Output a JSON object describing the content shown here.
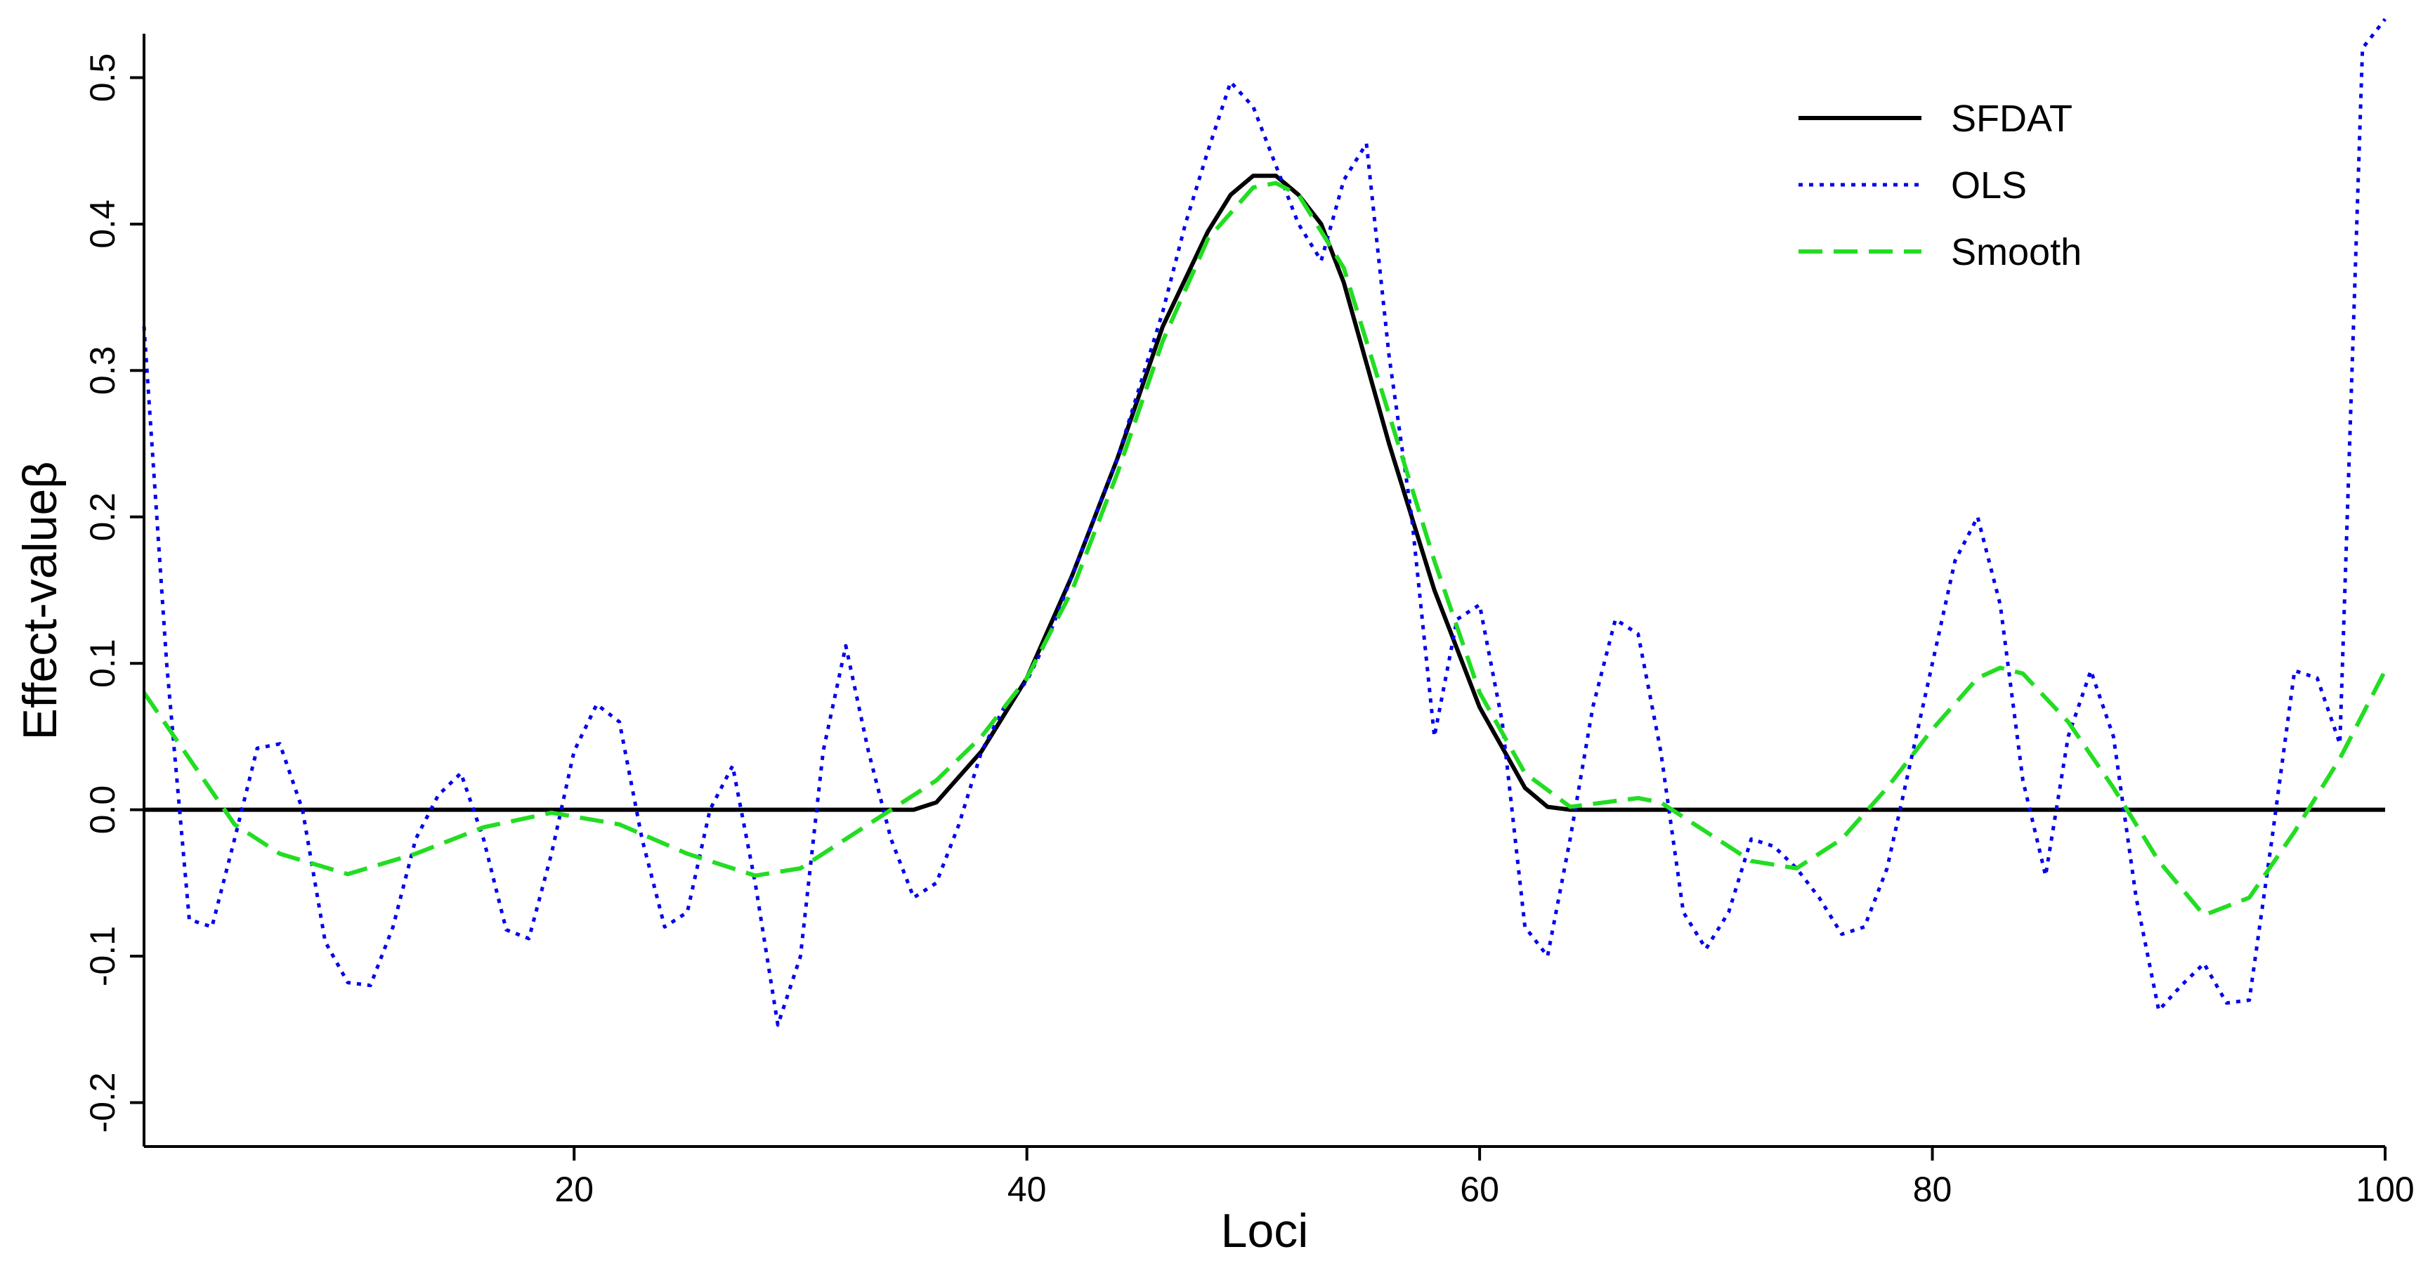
{
  "chart_data": {
    "type": "line",
    "title": "",
    "xlabel": "Loci",
    "ylabel": "Effect-valueβ",
    "xlim": [
      1,
      100
    ],
    "ylim": [
      -0.23,
      0.53
    ],
    "xticks": [
      20,
      40,
      60,
      80,
      100
    ],
    "yticks": [
      -0.2,
      -0.1,
      0.0,
      0.1,
      0.2,
      0.3,
      0.4,
      0.5
    ],
    "ytick_labels": [
      "-0.2",
      "-0.1",
      "0.0",
      "0.1",
      "0.2",
      "0.3",
      "0.4",
      "0.5"
    ],
    "grid": false,
    "legend_position": "top-right",
    "series": [
      {
        "name": "SFDAT",
        "color": "#000000",
        "style": "solid",
        "x": [
          1,
          35,
          36,
          38,
          40,
          42,
          44,
          46,
          48,
          49,
          50,
          51,
          52,
          53,
          54,
          56,
          58,
          60,
          62,
          63,
          64,
          100
        ],
        "y": [
          0,
          0,
          0.005,
          0.04,
          0.09,
          0.16,
          0.24,
          0.33,
          0.395,
          0.42,
          0.433,
          0.433,
          0.42,
          0.4,
          0.36,
          0.25,
          0.15,
          0.07,
          0.015,
          0.002,
          0,
          0
        ]
      },
      {
        "name": "OLS",
        "color": "#0000ee",
        "style": "dotted",
        "x": [
          1,
          2,
          3,
          4,
          5,
          6,
          7,
          8,
          9,
          10,
          11,
          12,
          13,
          14,
          15,
          16,
          17,
          18,
          19,
          20,
          21,
          22,
          23,
          24,
          25,
          26,
          27,
          28,
          29,
          30,
          31,
          32,
          33,
          34,
          35,
          36,
          37,
          38,
          39,
          40,
          41,
          42,
          43,
          44,
          45,
          46,
          47,
          48,
          49,
          50,
          51,
          52,
          53,
          54,
          55,
          56,
          57,
          58,
          59,
          60,
          61,
          62,
          63,
          64,
          65,
          66,
          67,
          68,
          69,
          70,
          71,
          72,
          73,
          74,
          75,
          76,
          77,
          78,
          79,
          80,
          81,
          82,
          83,
          84,
          85,
          86,
          87,
          88,
          89,
          90,
          91,
          92,
          93,
          94,
          95,
          96,
          97,
          98,
          99,
          100
        ],
        "y": [
          0.33,
          0.1,
          -0.075,
          -0.08,
          -0.02,
          0.042,
          0.045,
          0.0,
          -0.09,
          -0.118,
          -0.12,
          -0.08,
          -0.02,
          0.01,
          0.025,
          -0.02,
          -0.082,
          -0.088,
          -0.03,
          0.04,
          0.072,
          0.06,
          -0.02,
          -0.08,
          -0.07,
          0.0,
          0.03,
          -0.05,
          -0.147,
          -0.1,
          0.04,
          0.112,
          0.04,
          -0.02,
          -0.06,
          -0.05,
          -0.01,
          0.04,
          0.07,
          0.088,
          0.12,
          0.16,
          0.2,
          0.24,
          0.29,
          0.34,
          0.4,
          0.45,
          0.497,
          0.48,
          0.44,
          0.4,
          0.375,
          0.43,
          0.455,
          0.31,
          0.2,
          0.05,
          0.13,
          0.14,
          0.06,
          -0.08,
          -0.1,
          -0.02,
          0.07,
          0.13,
          0.12,
          0.04,
          -0.07,
          -0.095,
          -0.07,
          -0.02,
          -0.025,
          -0.04,
          -0.06,
          -0.085,
          -0.08,
          -0.04,
          0.03,
          0.1,
          0.17,
          0.2,
          0.14,
          0.02,
          -0.045,
          0.05,
          0.095,
          0.05,
          -0.06,
          -0.137,
          -0.12,
          -0.105,
          -0.132,
          -0.13,
          -0.02,
          0.095,
          0.09,
          0.045,
          0.52,
          0.54
        ]
      },
      {
        "name": "Smooth",
        "color": "#22dd22",
        "style": "dashed",
        "x": [
          1,
          3,
          5,
          7,
          10,
          13,
          16,
          19,
          22,
          25,
          28,
          30,
          32,
          34,
          36,
          38,
          40,
          42,
          44,
          46,
          48,
          50,
          51,
          52,
          54,
          56,
          58,
          60,
          62,
          64,
          66,
          67,
          68,
          70,
          72,
          74,
          76,
          78,
          80,
          82,
          83,
          84,
          86,
          88,
          90,
          92,
          94,
          96,
          98,
          100
        ],
        "y": [
          0.08,
          0.035,
          -0.01,
          -0.03,
          -0.044,
          -0.03,
          -0.012,
          -0.002,
          -0.01,
          -0.03,
          -0.045,
          -0.04,
          -0.02,
          0.0,
          0.02,
          0.05,
          0.09,
          0.15,
          0.23,
          0.32,
          0.39,
          0.425,
          0.428,
          0.42,
          0.37,
          0.27,
          0.17,
          0.08,
          0.025,
          0.002,
          0.006,
          0.008,
          0.005,
          -0.015,
          -0.035,
          -0.04,
          -0.02,
          0.015,
          0.055,
          0.09,
          0.097,
          0.093,
          0.06,
          0.015,
          -0.035,
          -0.072,
          -0.06,
          -0.015,
          0.035,
          0.095
        ]
      }
    ]
  }
}
